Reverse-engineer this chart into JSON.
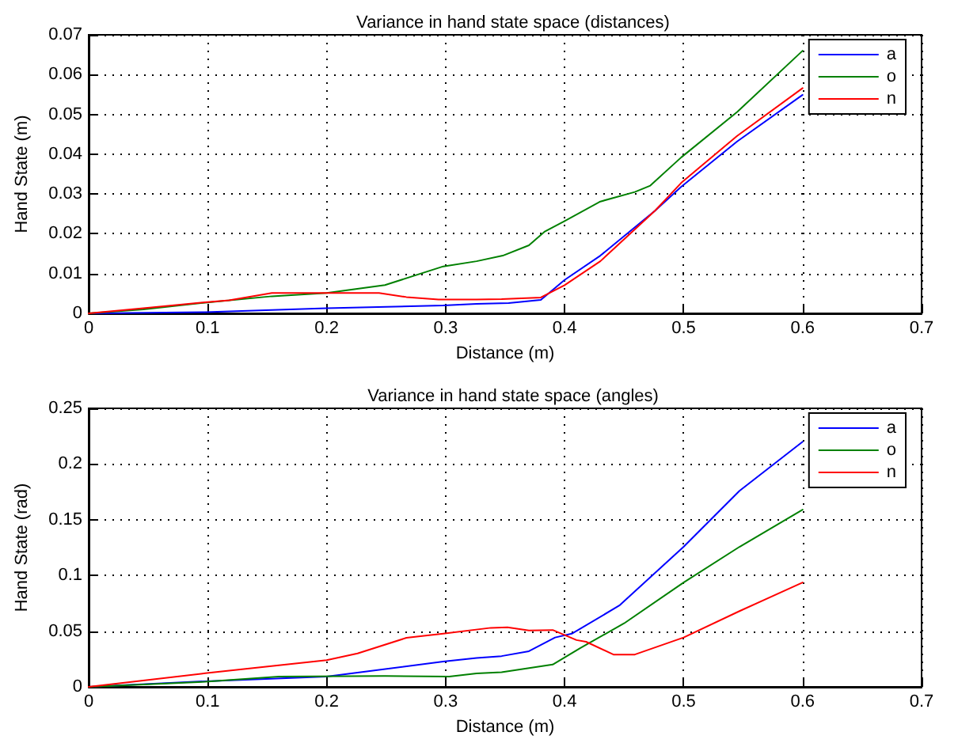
{
  "chart_data": [
    {
      "type": "line",
      "title": "Variance in hand state space (distances)",
      "xlabel": "Distance (m)",
      "ylabel": "Hand State (m)",
      "xlim": [
        0,
        0.7
      ],
      "xticks": [
        0,
        0.1,
        0.2,
        0.3,
        0.4,
        0.5,
        0.6,
        0.7
      ],
      "ylim": [
        0,
        0.07
      ],
      "yticks": [
        0,
        0.01,
        0.02,
        0.03,
        0.04,
        0.05,
        0.06,
        0.07
      ],
      "grid": true,
      "legend": "top right",
      "line_style": "solid",
      "marker": "none",
      "series": [
        {
          "name": "a",
          "color": "#0000ff",
          "x": [
            0,
            0.098,
            0.2,
            0.298,
            0.326,
            0.353,
            0.38,
            0.4,
            0.43,
            0.476,
            0.498,
            0.545,
            0.6
          ],
          "values": [
            0,
            0.0003,
            0.0013,
            0.002,
            0.0024,
            0.0026,
            0.0034,
            0.0084,
            0.0145,
            0.0258,
            0.0318,
            0.0432,
            0.0549
          ]
        },
        {
          "name": "o",
          "color": "#008000",
          "x": [
            0,
            0.046,
            0.098,
            0.154,
            0.2,
            0.249,
            0.298,
            0.326,
            0.348,
            0.37,
            0.383,
            0.4,
            0.43,
            0.459,
            0.472,
            0.498,
            0.545,
            0.6
          ],
          "values": [
            0,
            0.001,
            0.0027,
            0.0043,
            0.0051,
            0.0071,
            0.0118,
            0.0131,
            0.0145,
            0.0171,
            0.0205,
            0.0232,
            0.0281,
            0.0305,
            0.0321,
            0.0392,
            0.0506,
            0.066
          ]
        },
        {
          "name": "n",
          "color": "#ff0000",
          "x": [
            0,
            0.046,
            0.098,
            0.118,
            0.154,
            0.2,
            0.244,
            0.267,
            0.294,
            0.326,
            0.347,
            0.38,
            0.4,
            0.43,
            0.476,
            0.498,
            0.545,
            0.6
          ],
          "values": [
            0,
            0.0013,
            0.0028,
            0.0033,
            0.0051,
            0.0051,
            0.0051,
            0.0041,
            0.0035,
            0.0035,
            0.0036,
            0.004,
            0.0071,
            0.0131,
            0.0258,
            0.0328,
            0.0446,
            0.0566
          ]
        }
      ]
    },
    {
      "type": "line",
      "title": "Variance in hand state space (angles)",
      "xlabel": "Distance (m)",
      "ylabel": "Hand State (rad)",
      "xlim": [
        0,
        0.7
      ],
      "xticks": [
        0,
        0.1,
        0.2,
        0.3,
        0.4,
        0.5,
        0.6,
        0.7
      ],
      "ylim": [
        0,
        0.25
      ],
      "yticks": [
        0,
        0.05,
        0.1,
        0.15,
        0.2,
        0.25
      ],
      "grid": true,
      "legend": "top right",
      "line_style": "solid",
      "marker": "none",
      "series": [
        {
          "name": "a",
          "color": "#0000ff",
          "x": [
            0,
            0.098,
            0.2,
            0.298,
            0.326,
            0.347,
            0.37,
            0.392,
            0.406,
            0.446,
            0.5,
            0.547,
            0.6
          ],
          "values": [
            0,
            0.005,
            0.0093,
            0.0227,
            0.026,
            0.0276,
            0.032,
            0.0443,
            0.0477,
            0.073,
            0.1257,
            0.176,
            0.22
          ]
        },
        {
          "name": "o",
          "color": "#008000",
          "x": [
            0,
            0.098,
            0.16,
            0.249,
            0.303,
            0.326,
            0.347,
            0.39,
            0.413,
            0.45,
            0.5,
            0.547,
            0.6
          ],
          "values": [
            0,
            0.0046,
            0.0093,
            0.0098,
            0.0093,
            0.012,
            0.0132,
            0.02,
            0.0347,
            0.057,
            0.0937,
            0.1257,
            0.159
          ]
        },
        {
          "name": "n",
          "color": "#ff0000",
          "x": [
            0,
            0.098,
            0.2,
            0.226,
            0.267,
            0.298,
            0.338,
            0.352,
            0.37,
            0.39,
            0.41,
            0.418,
            0.441,
            0.459,
            0.5,
            0.547,
            0.6
          ],
          "values": [
            0,
            0.0122,
            0.024,
            0.03,
            0.044,
            0.0477,
            0.053,
            0.0534,
            0.0506,
            0.051,
            0.042,
            0.0405,
            0.029,
            0.029,
            0.0443,
            0.068,
            0.0937
          ]
        }
      ]
    }
  ]
}
